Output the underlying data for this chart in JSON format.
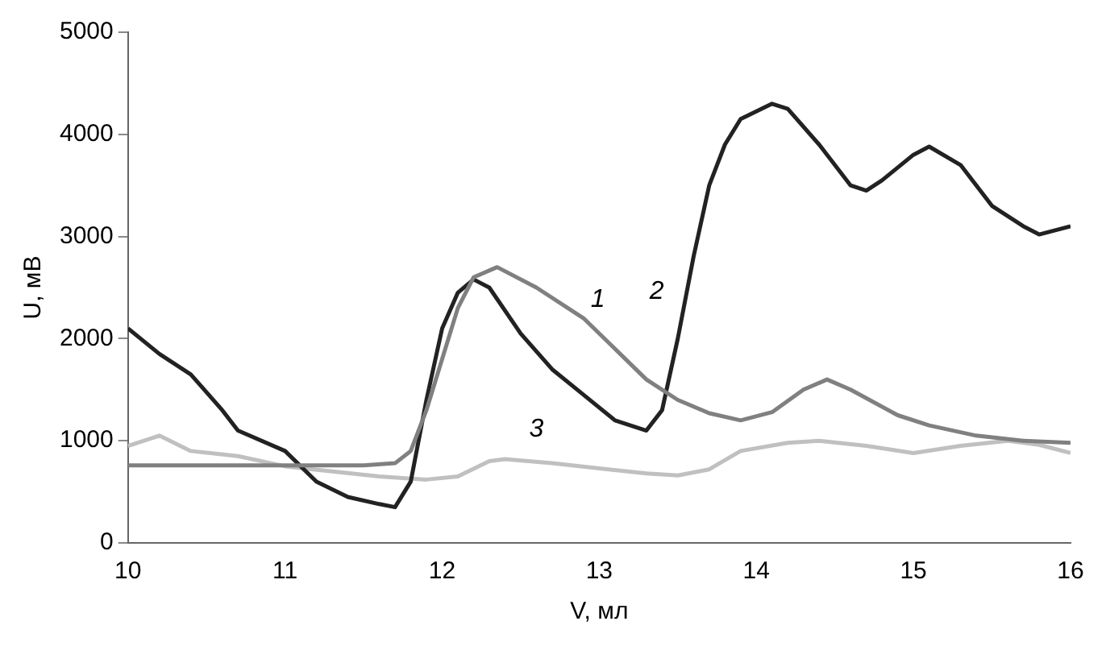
{
  "chart_data": {
    "type": "line",
    "xlabel": "V, мл",
    "ylabel": "U, мВ",
    "xlim": [
      10,
      16
    ],
    "xticks": [
      10,
      11,
      12,
      13,
      14,
      15,
      16
    ],
    "ylim": [
      0,
      5000
    ],
    "yticks": [
      0,
      1000,
      2000,
      3000,
      4000,
      5000
    ],
    "grid": false,
    "legend": false,
    "marker": "none",
    "line_style": "solid",
    "series": [
      {
        "name": "1",
        "color": "#808080",
        "x": [
          10,
          11,
          11.5,
          11.7,
          11.8,
          11.9,
          12.0,
          12.1,
          12.2,
          12.35,
          12.6,
          12.9,
          13.1,
          13.3,
          13.5,
          13.7,
          13.9,
          14.1,
          14.3,
          14.45,
          14.6,
          14.9,
          15.1,
          15.4,
          15.7,
          16
        ],
        "values": [
          760,
          760,
          760,
          780,
          900,
          1300,
          1800,
          2300,
          2600,
          2700,
          2500,
          2200,
          1900,
          1600,
          1400,
          1270,
          1200,
          1280,
          1500,
          1600,
          1500,
          1250,
          1150,
          1050,
          1000,
          980
        ]
      },
      {
        "name": "2",
        "color": "#222222",
        "x": [
          10,
          10.2,
          10.4,
          10.6,
          10.7,
          11.0,
          11.2,
          11.4,
          11.6,
          11.7,
          11.8,
          11.9,
          12.0,
          12.1,
          12.2,
          12.3,
          12.5,
          12.7,
          12.9,
          13.1,
          13.3,
          13.4,
          13.5,
          13.6,
          13.7,
          13.8,
          13.9,
          14.1,
          14.2,
          14.4,
          14.6,
          14.7,
          14.8,
          15.0,
          15.1,
          15.3,
          15.5,
          15.7,
          15.8,
          16
        ],
        "values": [
          2100,
          1850,
          1650,
          1300,
          1100,
          900,
          600,
          450,
          380,
          350,
          600,
          1400,
          2100,
          2450,
          2580,
          2500,
          2050,
          1700,
          1450,
          1200,
          1100,
          1300,
          2000,
          2800,
          3500,
          3900,
          4150,
          4300,
          4250,
          3900,
          3500,
          3450,
          3550,
          3800,
          3880,
          3700,
          3300,
          3100,
          3020,
          3100
        ]
      },
      {
        "name": "3",
        "color": "#c0c0c0",
        "x": [
          10,
          10.2,
          10.4,
          10.7,
          11,
          11.3,
          11.6,
          11.9,
          12.1,
          12.3,
          12.4,
          12.7,
          13.0,
          13.3,
          13.5,
          13.7,
          13.9,
          14.2,
          14.4,
          14.7,
          15,
          15.3,
          15.6,
          15.8,
          16
        ],
        "values": [
          950,
          1050,
          900,
          850,
          750,
          700,
          650,
          620,
          650,
          800,
          820,
          780,
          730,
          680,
          660,
          720,
          900,
          980,
          1000,
          950,
          880,
          950,
          1000,
          960,
          880
        ]
      }
    ]
  }
}
